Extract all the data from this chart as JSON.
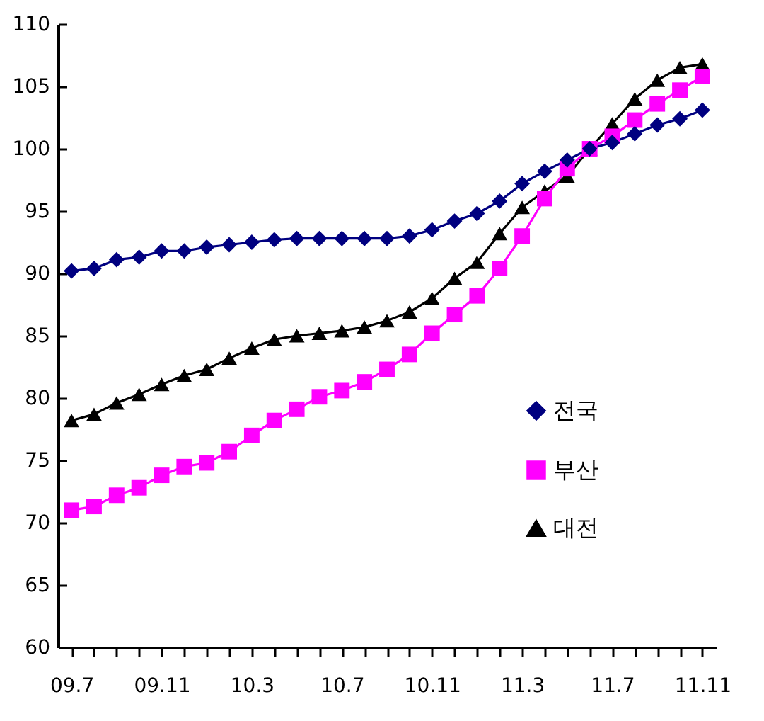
{
  "chart_data": {
    "type": "line",
    "categories": [
      "09.7",
      null,
      null,
      null,
      "09.11",
      null,
      null,
      null,
      "10.3",
      null,
      null,
      null,
      "10.7",
      null,
      null,
      null,
      "10.11",
      null,
      null,
      null,
      "11.3",
      null,
      null,
      null,
      "11.7",
      null,
      null,
      null,
      "11.11"
    ],
    "series": [
      {
        "name": "전국",
        "color": "#000080",
        "marker": "diamond",
        "values": [
          90.2,
          90.4,
          91.1,
          91.3,
          91.8,
          91.8,
          92.1,
          92.3,
          92.5,
          92.7,
          92.8,
          92.8,
          92.8,
          92.8,
          92.8,
          93.0,
          93.5,
          94.2,
          94.8,
          95.8,
          97.2,
          98.2,
          99.1,
          100.0,
          100.5,
          101.2,
          101.9,
          102.4,
          103.1
        ]
      },
      {
        "name": "부산",
        "color": "#ff00ff",
        "marker": "square",
        "values": [
          71.0,
          71.3,
          72.2,
          72.8,
          73.8,
          74.5,
          74.8,
          75.7,
          77.0,
          78.2,
          79.1,
          80.1,
          80.6,
          81.3,
          82.3,
          83.5,
          85.2,
          86.7,
          88.2,
          90.4,
          93.0,
          96.0,
          98.4,
          100.0,
          101.0,
          102.3,
          103.6,
          104.7,
          105.8
        ]
      },
      {
        "name": "대전",
        "color": "#000000",
        "marker": "triangle",
        "values": [
          78.2,
          78.7,
          79.6,
          80.3,
          81.1,
          81.8,
          82.3,
          83.2,
          84.0,
          84.7,
          85.0,
          85.2,
          85.4,
          85.7,
          86.2,
          86.9,
          88.0,
          89.6,
          90.9,
          93.2,
          95.3,
          96.6,
          97.8,
          100.0,
          102.0,
          104.0,
          105.5,
          106.5,
          106.8
        ]
      }
    ],
    "ylim": [
      60,
      110
    ],
    "yticks": [
      60,
      65,
      70,
      75,
      80,
      85,
      90,
      95,
      100,
      105,
      110
    ],
    "legend": "right",
    "grid": false
  }
}
